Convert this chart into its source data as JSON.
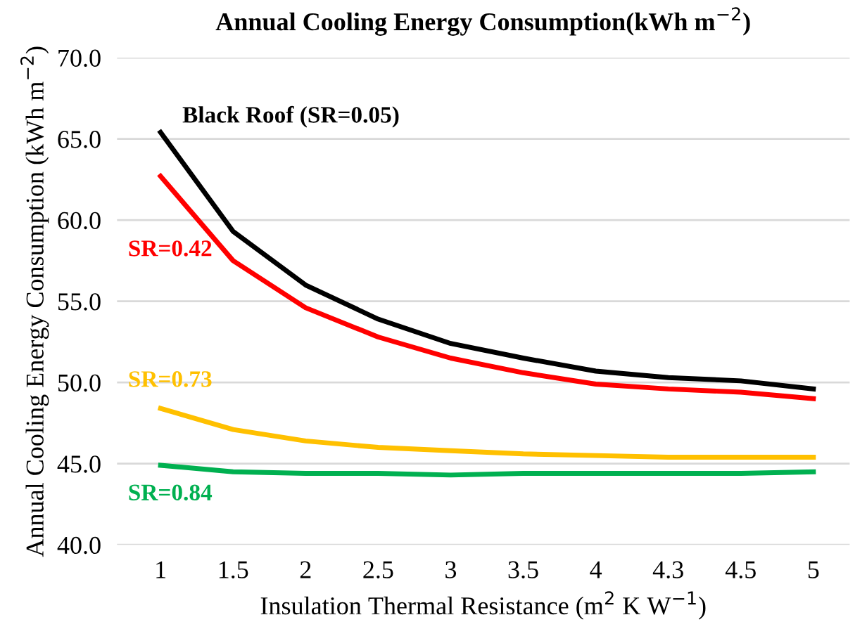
{
  "chart_data": {
    "type": "line",
    "title": "Annual Cooling Energy Consumption(kWh m$^{−2}$)",
    "xlabel": "Insulation Thermal Resistance (m$^{2}$ K W$^{−1}$)",
    "ylabel": "Annual Cooling Energy Consumption (kWh m$^{−2}$)",
    "categories": [
      "1",
      "1.5",
      "2",
      "2.5",
      "3",
      "3.5",
      "4",
      "4.3",
      "4.5",
      "5"
    ],
    "series": [
      {
        "name": "Black Roof (SR=0.05)",
        "color": "#000000",
        "values": [
          65.4,
          59.3,
          56.0,
          53.9,
          52.4,
          51.5,
          50.7,
          50.3,
          50.1,
          49.6
        ]
      },
      {
        "name": "SR=0.42",
        "color": "#ff0000",
        "values": [
          62.7,
          57.5,
          54.6,
          52.8,
          51.5,
          50.6,
          49.9,
          49.6,
          49.4,
          49.0
        ]
      },
      {
        "name": "SR=0.73",
        "color": "#ffc000",
        "values": [
          48.4,
          47.1,
          46.4,
          46.0,
          45.8,
          45.6,
          45.5,
          45.4,
          45.4,
          45.4
        ]
      },
      {
        "name": "SR=0.84",
        "color": "#00b050",
        "values": [
          44.9,
          44.5,
          44.4,
          44.4,
          44.3,
          44.4,
          44.4,
          44.4,
          44.4,
          44.5
        ]
      }
    ],
    "ylim": [
      40,
      70
    ],
    "yticks": [
      {
        "value": 40,
        "label": "40.0"
      },
      {
        "value": 45,
        "label": "45.0"
      },
      {
        "value": 50,
        "label": "50.0"
      },
      {
        "value": 55,
        "label": "55.0"
      },
      {
        "value": 60,
        "label": "60.0"
      },
      {
        "value": 65,
        "label": "65.0"
      },
      {
        "value": 70,
        "label": "70.0"
      }
    ],
    "grid": "y",
    "legend": false,
    "marker": "none",
    "line_style": "solid"
  }
}
